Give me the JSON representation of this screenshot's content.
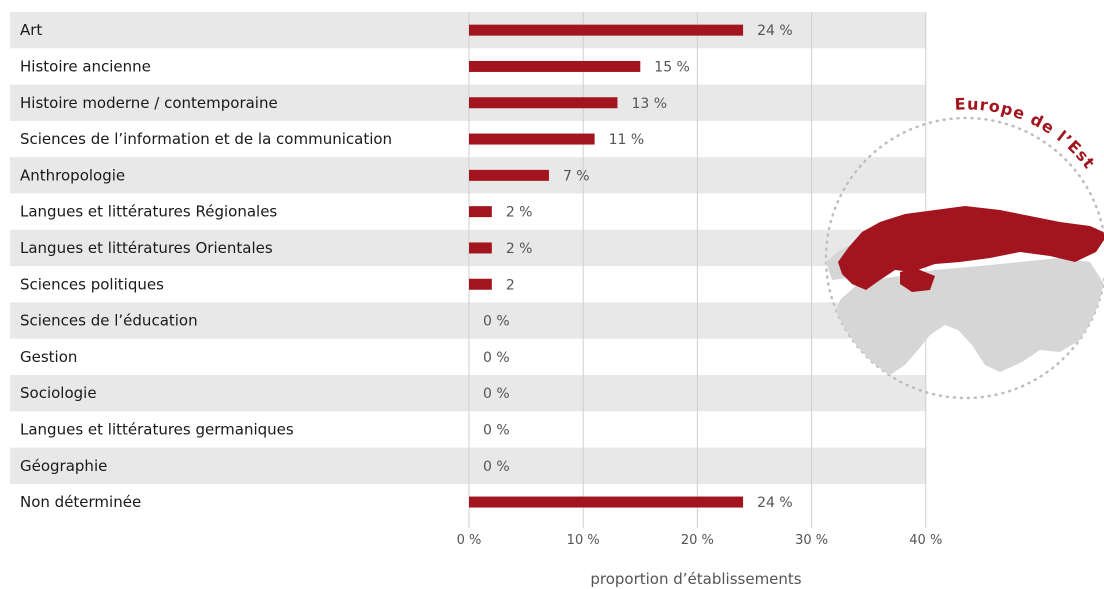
{
  "chart_data": {
    "type": "bar",
    "orientation": "horizontal",
    "categories": [
      "Art",
      "Histoire ancienne",
      "Histoire moderne / contemporaine",
      "Sciences de l’information et de la communication",
      "Anthropologie",
      "Langues et littératures Régionales",
      "Langues et littératures Orientales",
      "Sciences politiques",
      "Sciences de l’éducation",
      "Gestion",
      "Sociologie",
      "Langues et littératures germaniques",
      "Géographie",
      "Non déterminée"
    ],
    "values": [
      24,
      15,
      13,
      11,
      7,
      2,
      2,
      2,
      0,
      0,
      0,
      0,
      0,
      24
    ],
    "value_labels": [
      "24 %",
      "15 %",
      "13 %",
      "11 %",
      "7 %",
      "2 %",
      "2 %",
      "2",
      "0 %",
      "0 %",
      "0 %",
      "0 %",
      "0 %",
      "24 %"
    ],
    "xlabel": "proportion d’établissements",
    "xlim": [
      0,
      40
    ],
    "x_ticks": [
      0,
      10,
      20,
      30,
      40
    ],
    "x_tick_labels": [
      "0 %",
      "10 %",
      "20 %",
      "30 %",
      "40 %"
    ],
    "grid": true,
    "bar_color": "#a3151e",
    "stripe_color": "#e8e8e9",
    "map_region_label": "Europe de l’Est"
  }
}
